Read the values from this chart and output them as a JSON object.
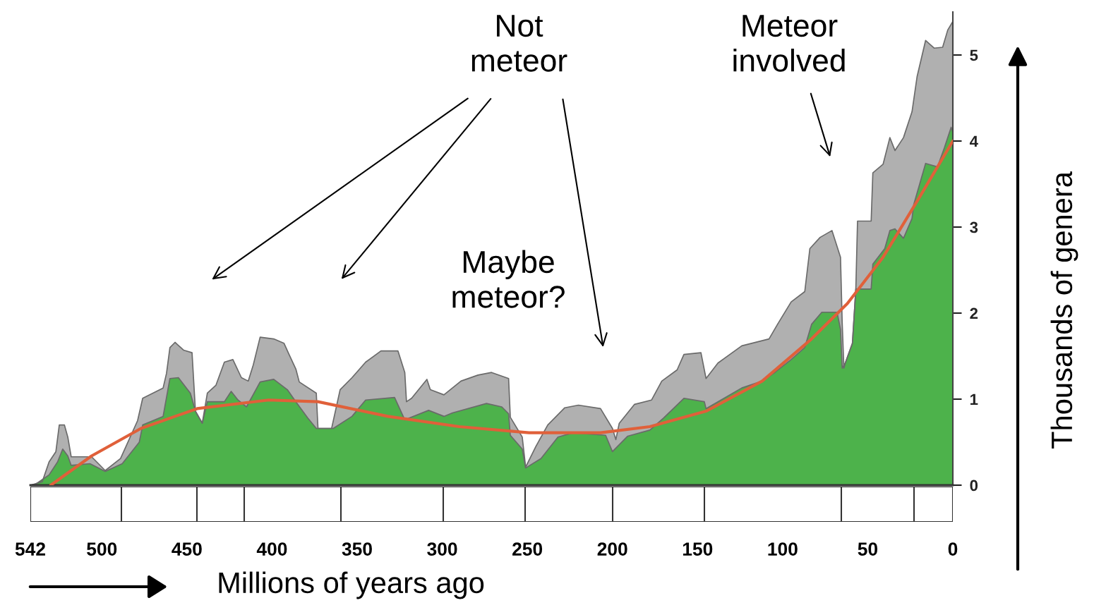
{
  "chart_data": {
    "type": "area",
    "xlabel": "Millions of years ago",
    "ylabel": "Thousands of genera",
    "xlim": [
      542,
      0
    ],
    "xticks": [
      542,
      500,
      450,
      400,
      350,
      300,
      250,
      200,
      150,
      100,
      50,
      0
    ],
    "ylim": [
      0,
      5.5
    ],
    "yticks": [
      0,
      1,
      2,
      3,
      4,
      5
    ],
    "grid": false,
    "annotations": [
      "Not\nmeteor",
      "Maybe\nmeteor?",
      "Meteor\ninvolved"
    ],
    "series": [
      {
        "color": "#b0b0b0",
        "x": [
          542,
          535,
          531,
          527,
          525,
          522,
          520,
          518,
          506,
          498,
          489,
          479,
          476,
          464,
          462,
          460,
          457,
          452,
          447,
          445,
          441,
          438,
          433,
          428,
          423,
          418,
          414,
          411,
          407,
          399,
          393,
          390,
          386,
          384,
          374,
          373,
          365,
          360,
          353,
          345,
          336,
          326,
          322,
          321,
          318,
          309,
          307,
          299,
          289,
          279,
          271,
          261,
          260,
          253,
          251,
          245,
          238,
          228,
          220,
          207,
          200,
          198,
          196,
          187,
          177,
          171,
          162,
          158,
          148,
          145,
          138,
          124,
          108,
          103,
          95,
          87,
          84,
          78,
          71,
          66,
          65,
          64,
          63,
          59,
          57,
          56,
          48,
          47,
          41,
          37,
          34,
          29,
          24,
          21,
          16,
          11,
          6,
          3,
          0
        ],
        "values": [
          0,
          0.04,
          0.27,
          0.39,
          0.7,
          0.7,
          0.56,
          0.33,
          0.33,
          0.17,
          0.31,
          0.75,
          1.01,
          1.13,
          1.3,
          1.6,
          1.66,
          1.57,
          1.54,
          0.86,
          0.72,
          1.07,
          1.16,
          1.43,
          1.46,
          1.25,
          1.21,
          1.4,
          1.72,
          1.7,
          1.65,
          1.52,
          1.35,
          1.2,
          1.07,
          0.66,
          0.66,
          1.11,
          1.25,
          1.43,
          1.56,
          1.56,
          1.31,
          0.97,
          1.01,
          1.23,
          1.11,
          1.05,
          1.21,
          1.28,
          1.31,
          1.24,
          0.79,
          0.56,
          0.21,
          0.45,
          0.7,
          0.9,
          0.93,
          0.89,
          0.66,
          0.53,
          0.72,
          0.94,
          0.99,
          1.21,
          1.34,
          1.52,
          1.54,
          1.24,
          1.42,
          1.62,
          1.7,
          1.87,
          2.13,
          2.25,
          2.75,
          2.88,
          2.96,
          2.65,
          1.89,
          1.36,
          1.43,
          1.65,
          2.28,
          3.07,
          3.07,
          3.63,
          3.73,
          4.04,
          3.89,
          4.04,
          4.34,
          4.75,
          5.17,
          5.08,
          5.09,
          5.29,
          5.39
        ]
      },
      {
        "color": "#4db24b",
        "x": [
          542,
          539,
          531,
          526,
          523,
          520,
          518,
          507,
          498,
          488,
          478,
          476,
          464,
          460,
          455,
          448,
          445,
          441,
          438,
          428,
          424,
          420,
          415,
          407,
          399,
          391,
          386,
          379,
          374,
          364,
          353,
          345,
          328,
          322,
          308,
          299,
          294,
          274,
          265,
          261,
          260,
          253,
          251,
          242,
          232,
          223,
          204,
          200,
          191,
          178,
          170,
          158,
          146,
          145,
          138,
          124,
          112,
          104,
          95,
          87,
          83,
          77,
          68,
          66,
          65,
          63,
          59,
          57,
          48,
          47,
          40,
          37,
          34,
          29,
          24,
          23,
          16,
          9,
          5,
          1,
          0
        ],
        "values": [
          0,
          0.01,
          0.12,
          0.27,
          0.42,
          0.34,
          0.23,
          0.25,
          0.16,
          0.25,
          0.5,
          0.7,
          0.8,
          1.24,
          1.25,
          1.07,
          0.86,
          0.72,
          0.97,
          0.97,
          1.09,
          0.99,
          0.91,
          1.2,
          1.23,
          1.11,
          0.97,
          0.78,
          0.66,
          0.66,
          0.8,
          0.99,
          1.02,
          0.76,
          0.87,
          0.8,
          0.84,
          0.95,
          0.91,
          0.83,
          0.58,
          0.42,
          0.2,
          0.31,
          0.56,
          0.61,
          0.58,
          0.39,
          0.57,
          0.64,
          0.78,
          1.01,
          0.97,
          0.89,
          0.97,
          1.13,
          1.21,
          1.32,
          1.46,
          1.6,
          1.87,
          2.01,
          2.01,
          1.81,
          1.36,
          1.43,
          1.65,
          2.28,
          2.28,
          2.57,
          2.75,
          2.96,
          2.98,
          2.87,
          3.1,
          3.26,
          3.74,
          3.7,
          3.92,
          4.16,
          4.1
        ]
      },
      {
        "type": "line",
        "color": "#e0603a",
        "x": [
          530,
          506,
          477,
          444,
          402,
          373,
          332,
          290,
          249,
          207,
          178,
          145,
          112,
          83,
          62,
          41,
          21,
          0
        ],
        "values": [
          0,
          0.34,
          0.66,
          0.89,
          0.99,
          0.97,
          0.8,
          0.68,
          0.61,
          0.61,
          0.68,
          0.86,
          1.21,
          1.7,
          2.11,
          2.65,
          3.3,
          4.0
        ]
      }
    ]
  }
}
